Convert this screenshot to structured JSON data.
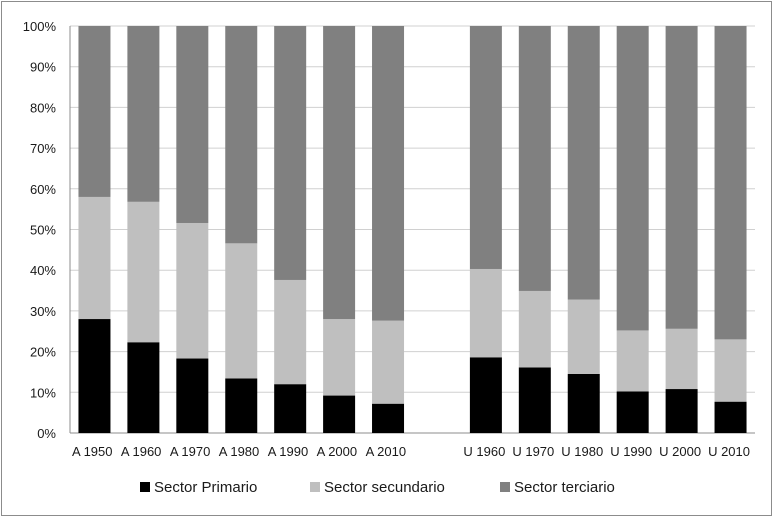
{
  "chart_data": {
    "type": "bar",
    "stacked": true,
    "percent": true,
    "ylim": [
      0,
      100
    ],
    "yticks": [
      "0%",
      "10%",
      "20%",
      "30%",
      "40%",
      "50%",
      "60%",
      "70%",
      "80%",
      "90%",
      "100%"
    ],
    "grid": true,
    "legend_position": "bottom",
    "groups": [
      {
        "categories": [
          "A 1950",
          "A 1960",
          "A 1970",
          "A 1980",
          "A 1990",
          "A 2000",
          "A 2010"
        ],
        "series": [
          {
            "name": "Sector Primario",
            "color": "#000000",
            "values": [
              28,
              22.3,
              18.3,
              13.4,
              12,
              9.2,
              7.2
            ]
          },
          {
            "name": "Sector secundario",
            "color": "#bfbfbf",
            "values": [
              30,
              34.5,
              33.3,
              33.2,
              25.6,
              18.8,
              20.4
            ]
          },
          {
            "name": "Sector terciario",
            "color": "#808080",
            "values": [
              42,
              43.2,
              48.4,
              53.4,
              62.4,
              72,
              72.4
            ]
          }
        ]
      },
      {
        "categories": [
          "U 1960",
          "U 1970",
          "U 1980",
          "U 1990",
          "U 2000",
          "U 2010"
        ],
        "series": [
          {
            "name": "Sector Primario",
            "color": "#000000",
            "values": [
              18.6,
              16.1,
              14.5,
              10.2,
              10.8,
              7.7
            ]
          },
          {
            "name": "Sector secundario",
            "color": "#bfbfbf",
            "values": [
              21.7,
              18.8,
              18.3,
              15,
              14.8,
              15.3
            ]
          },
          {
            "name": "Sector terciario",
            "color": "#808080",
            "values": [
              59.7,
              65.1,
              67.2,
              74.8,
              74.4,
              77
            ]
          }
        ]
      }
    ]
  }
}
